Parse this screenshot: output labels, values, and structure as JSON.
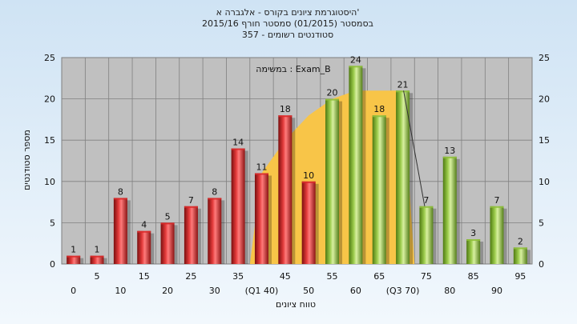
{
  "colors": {
    "background_top": "#cfe3f4",
    "background_bottom": "#f2f8fd",
    "plot_background": "#c0c0c0",
    "fail_bar": "#d92b2b",
    "pass_bar": "#8fbf3c",
    "range_area": "#f8c548",
    "gridline": "#808080",
    "quartile_line": "#333333"
  },
  "chart_data": {
    "type": "bar",
    "title_lines": [
      "היסטוגרמת ציונים בקורס - אלגברה א'",
      "בסמסטר (01/2015) סמסטר חורף 2015/16",
      "סטודנטים רשומים - 357"
    ],
    "annotation": "במשימה : Exam_B",
    "xlabel": "טווח ציונים",
    "ylabel": "מספר סטודנטים",
    "ylim": [
      0,
      25
    ],
    "yticks": [
      "0",
      "5",
      "10",
      "15",
      "20",
      "25"
    ],
    "y2ticks": [
      "0",
      "5",
      "10",
      "15",
      "20",
      "25"
    ],
    "grid": true,
    "categories": [
      "0",
      "5",
      "10",
      "15",
      "20",
      "25",
      "30",
      "35",
      "(Q1 40)",
      "45",
      "50",
      "55",
      "60",
      "65",
      "(Q3 70)",
      "75",
      "80",
      "85",
      "90",
      "95"
    ],
    "values": [
      1,
      1,
      8,
      4,
      5,
      7,
      8,
      14,
      11,
      18,
      10,
      20,
      24,
      18,
      21,
      7,
      13,
      3,
      7,
      2
    ],
    "bar_groups": [
      "fail",
      "fail",
      "fail",
      "fail",
      "fail",
      "fail",
      "fail",
      "fail",
      "fail",
      "fail",
      "fail",
      "pass",
      "pass",
      "pass",
      "pass",
      "pass",
      "pass",
      "pass",
      "pass",
      "pass"
    ],
    "interquartile_area": {
      "from_index": 8,
      "to_index": 14,
      "values": [
        11,
        15,
        18,
        20,
        21,
        21,
        21
      ]
    }
  }
}
